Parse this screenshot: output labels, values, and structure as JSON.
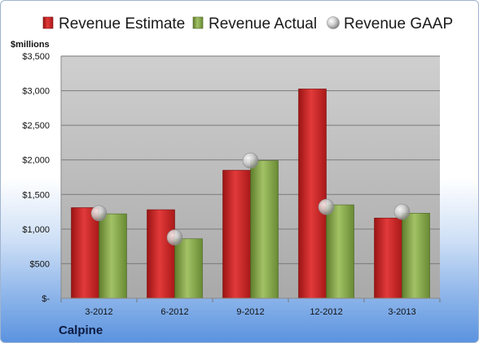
{
  "chart_data": {
    "type": "bar",
    "ylabel": "$millions",
    "categories": [
      "3-2012",
      "6-2012",
      "9-2012",
      "12-2012",
      "3-2013"
    ],
    "series": [
      {
        "name": "Revenue Estimate",
        "kind": "bar",
        "color": "#d42a2a",
        "values": [
          1310,
          1280,
          1850,
          3025,
          1160
        ]
      },
      {
        "name": "Revenue Actual",
        "kind": "bar",
        "color": "#8dae4f",
        "values": [
          1220,
          860,
          1990,
          1350,
          1230
        ]
      },
      {
        "name": "Revenue GAAP",
        "kind": "marker",
        "color": "#c9c9c9",
        "values": [
          1230,
          880,
          1990,
          1320,
          1250
        ]
      }
    ],
    "ylim": [
      0,
      3500
    ],
    "yticks": [
      0,
      500,
      1000,
      1500,
      2000,
      2500,
      3000,
      3500
    ],
    "ytick_labels": [
      "$-",
      "$500",
      "$1,000",
      "$1,500",
      "$2,000",
      "$2,500",
      "$3,000",
      "$3,500"
    ],
    "grid": true,
    "legend_position": "top",
    "company": "Calpine"
  }
}
